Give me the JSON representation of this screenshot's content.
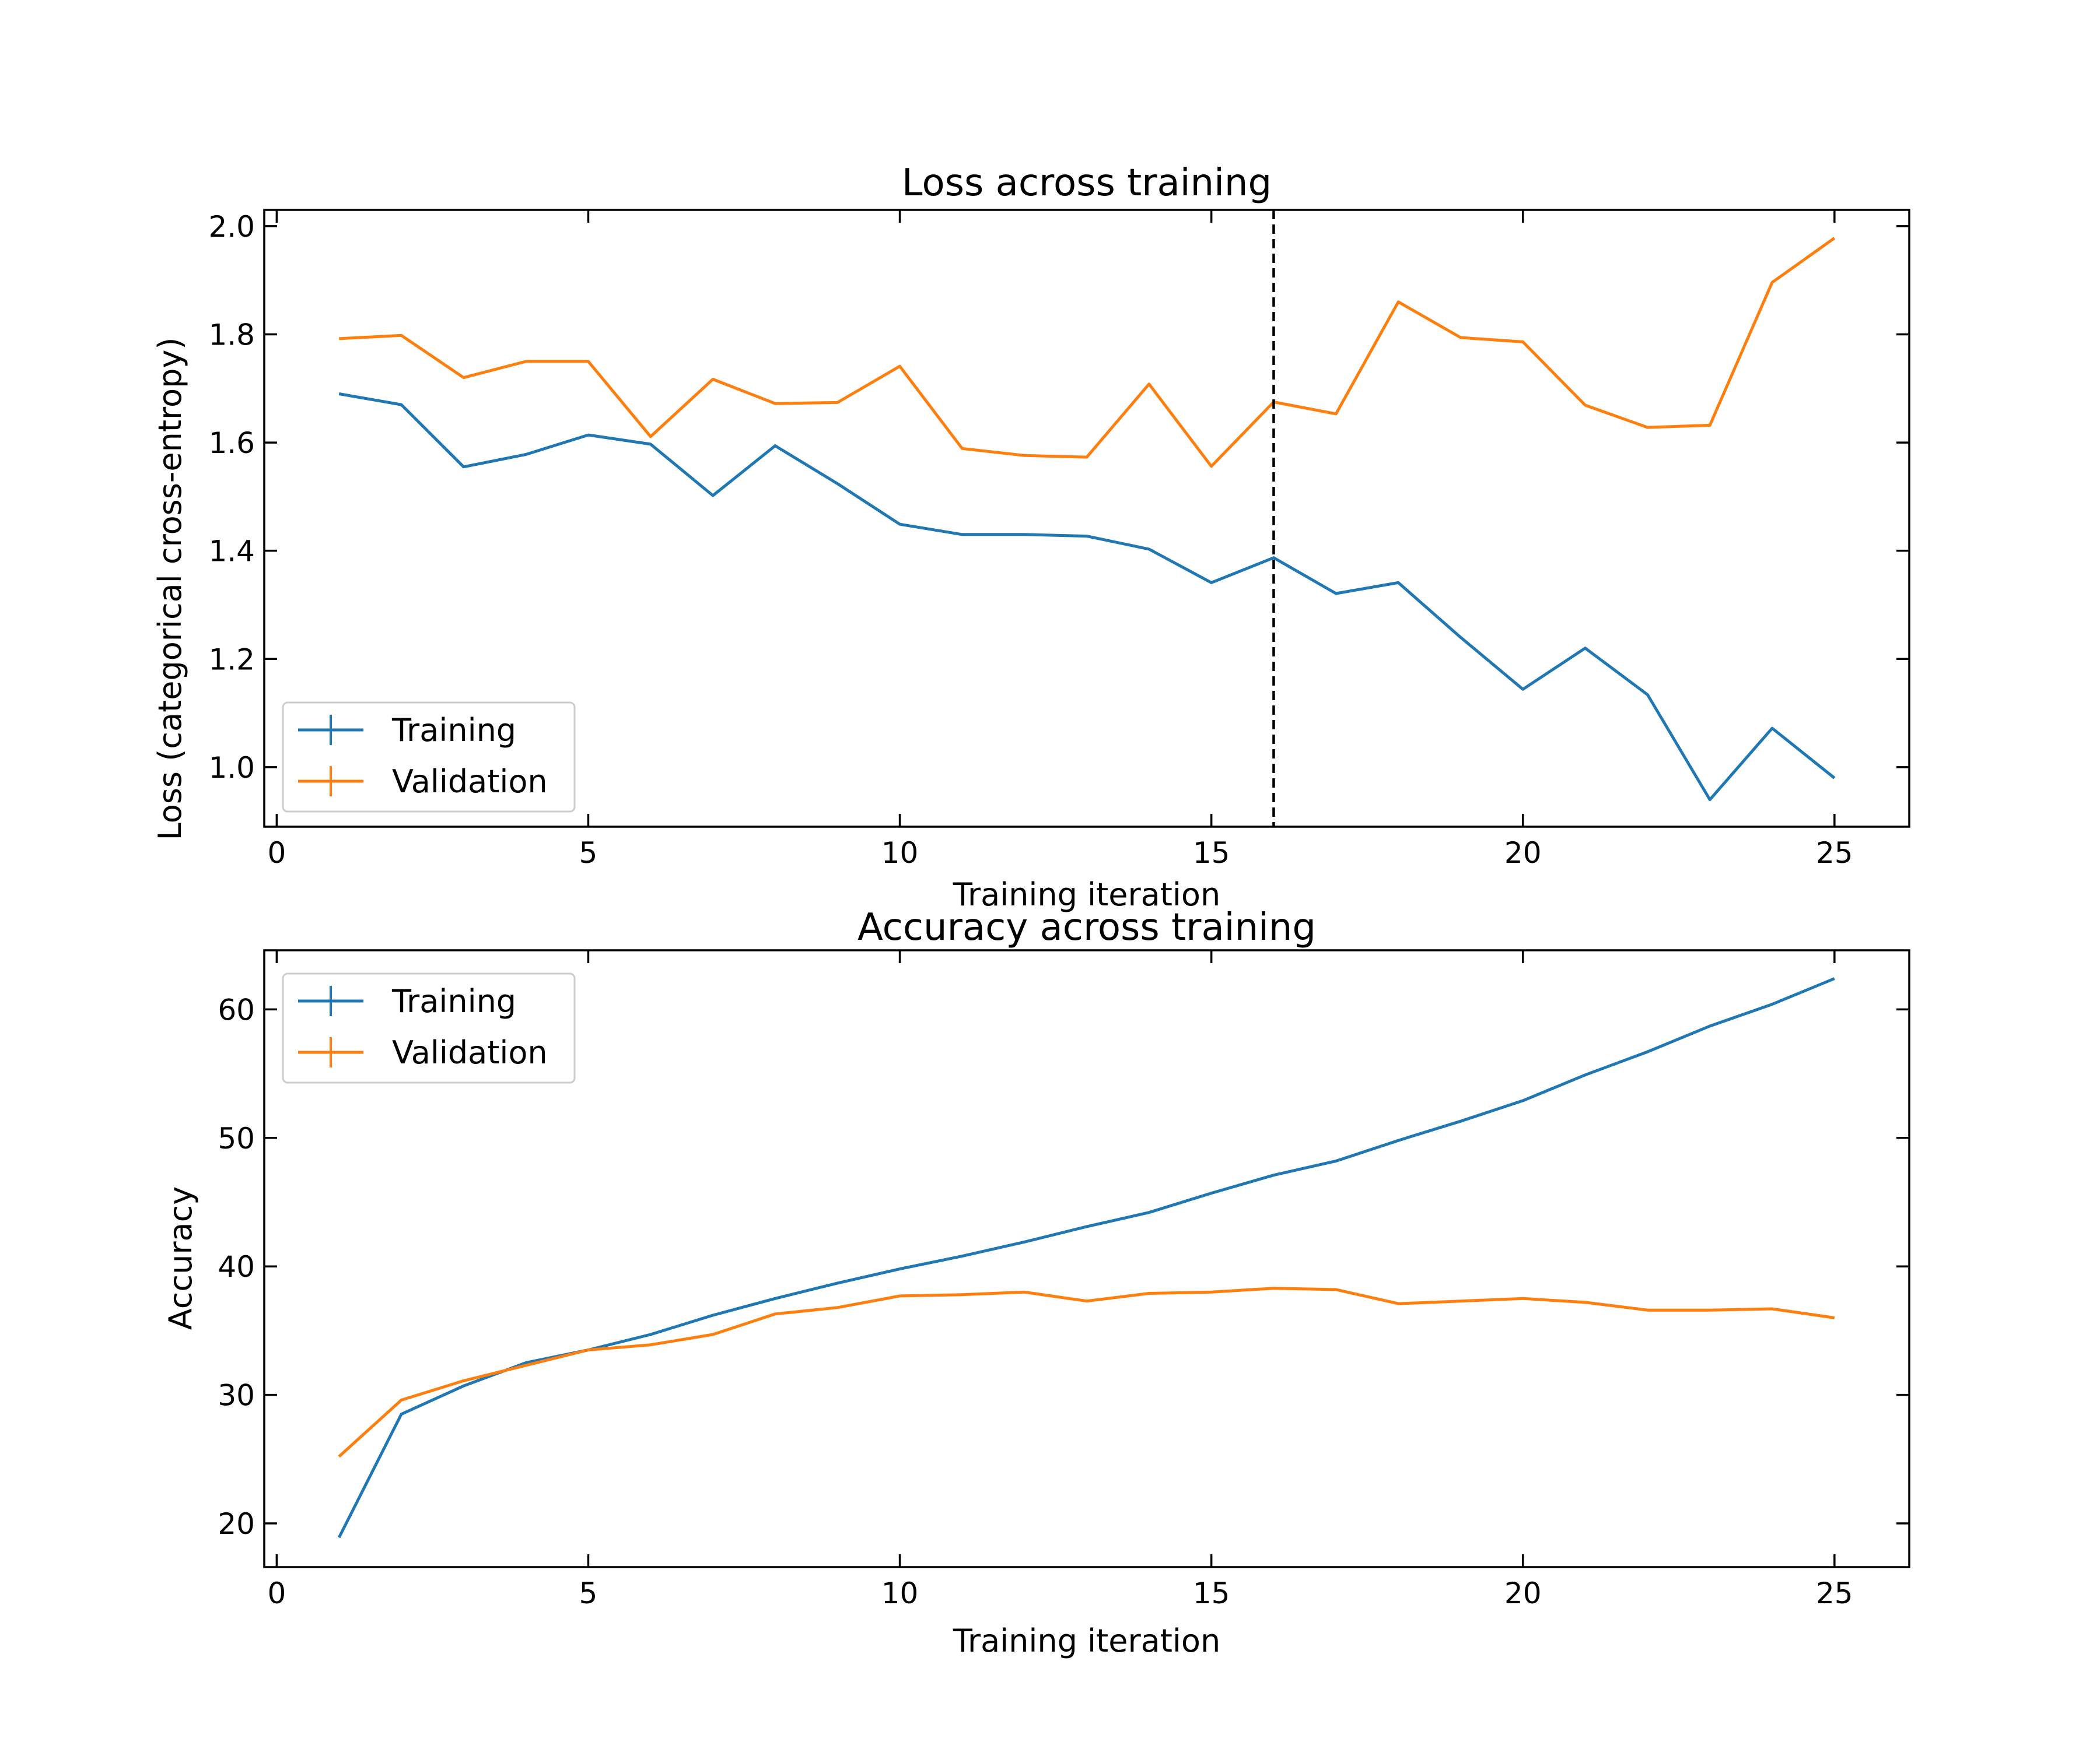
{
  "chart_data": [
    {
      "type": "line",
      "title": "Loss across training",
      "xlabel": "Training iteration",
      "ylabel": "Loss (categorical cross-entropy)",
      "xlim": [
        -0.2,
        26.2
      ],
      "ylim": [
        0.89,
        2.03
      ],
      "xticks": [
        0,
        5,
        10,
        15,
        20,
        25
      ],
      "xtick_labels": [
        "0",
        "5",
        "10",
        "15",
        "20",
        "25"
      ],
      "yticks": [
        1.0,
        1.2,
        1.4,
        1.6,
        1.8,
        2.0
      ],
      "ytick_labels": [
        "1.0",
        "1.2",
        "1.4",
        "1.6",
        "1.8",
        "2.0"
      ],
      "vline_x": 16,
      "legend_position": "lower-left",
      "grid": false,
      "x": [
        1,
        2,
        3,
        4,
        5,
        6,
        7,
        8,
        9,
        10,
        11,
        12,
        13,
        14,
        15,
        16,
        17,
        18,
        19,
        20,
        21,
        22,
        23,
        24,
        25
      ],
      "series": [
        {
          "name": "Training",
          "color": "#1f77b4",
          "values": [
            1.69,
            1.67,
            1.555,
            1.578,
            1.614,
            1.597,
            1.502,
            1.594,
            1.524,
            1.449,
            1.43,
            1.43,
            1.427,
            1.403,
            1.341,
            1.387,
            1.321,
            1.341,
            1.24,
            1.144,
            1.22,
            1.134,
            0.94,
            1.072,
            0.98
          ]
        },
        {
          "name": "Validation",
          "color": "#ff7f0e",
          "values": [
            1.792,
            1.798,
            1.72,
            1.75,
            1.75,
            1.611,
            1.717,
            1.672,
            1.674,
            1.741,
            1.589,
            1.576,
            1.573,
            1.708,
            1.556,
            1.675,
            1.653,
            1.86,
            1.794,
            1.786,
            1.669,
            1.628,
            1.632,
            1.896,
            1.978
          ]
        }
      ]
    },
    {
      "type": "line",
      "title": "Accuracy across training",
      "xlabel": "Training iteration",
      "ylabel": "Accuracy",
      "xlim": [
        -0.2,
        26.2
      ],
      "ylim": [
        16.6,
        64.6
      ],
      "xticks": [
        0,
        5,
        10,
        15,
        20,
        25
      ],
      "xtick_labels": [
        "0",
        "5",
        "10",
        "15",
        "20",
        "25"
      ],
      "yticks": [
        20,
        30,
        40,
        50,
        60
      ],
      "ytick_labels": [
        "20",
        "30",
        "40",
        "50",
        "60"
      ],
      "legend_position": "upper-left",
      "grid": false,
      "x": [
        1,
        2,
        3,
        4,
        5,
        6,
        7,
        8,
        9,
        10,
        11,
        12,
        13,
        14,
        15,
        16,
        17,
        18,
        19,
        20,
        21,
        22,
        23,
        24,
        25
      ],
      "series": [
        {
          "name": "Training",
          "color": "#1f77b4",
          "values": [
            18.9,
            28.5,
            30.7,
            32.5,
            33.5,
            34.7,
            36.2,
            37.5,
            38.7,
            39.8,
            40.8,
            41.9,
            43.1,
            44.2,
            45.7,
            47.1,
            48.2,
            49.8,
            51.3,
            52.9,
            54.9,
            56.7,
            58.7,
            60.4,
            62.4
          ]
        },
        {
          "name": "Validation",
          "color": "#ff7f0e",
          "values": [
            25.2,
            29.6,
            31.1,
            32.3,
            33.5,
            33.9,
            34.7,
            36.3,
            36.8,
            37.7,
            37.8,
            38.0,
            37.3,
            37.9,
            38.0,
            38.3,
            38.2,
            37.1,
            37.3,
            37.5,
            37.2,
            36.6,
            36.6,
            36.7,
            36.0
          ]
        }
      ]
    }
  ]
}
